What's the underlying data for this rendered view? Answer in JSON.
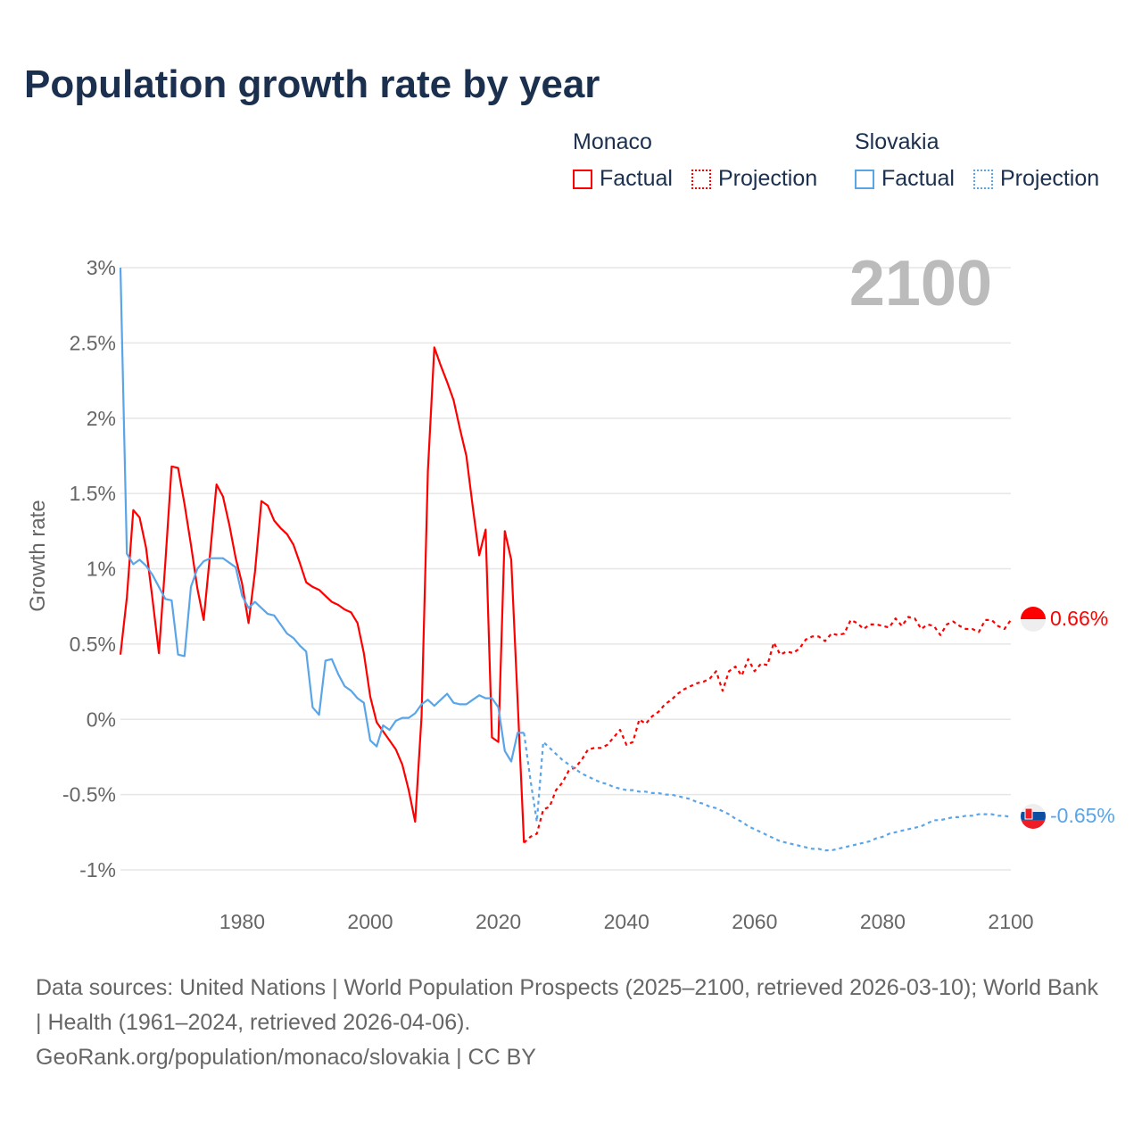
{
  "title": "Population growth rate by year",
  "legend": {
    "groups": [
      {
        "name": "Monaco",
        "factual": "Factual",
        "projection": "Projection",
        "color": "#ff0000"
      },
      {
        "name": "Slovakia",
        "factual": "Factual",
        "projection": "Projection",
        "color": "#5aa5e8"
      }
    ]
  },
  "year_watermark": "2100",
  "end_labels": {
    "monaco": "0.66%",
    "slovakia": "-0.65%"
  },
  "footer": {
    "sources": "Data sources: United Nations | World Population Prospects (2025–2100, retrieved 2026-03-10); World Bank | Health (1961–2024, retrieved 2026-04-06).",
    "credit": "GeoRank.org/population/monaco/slovakia | CC BY"
  },
  "chart_data": {
    "type": "line",
    "title": "Population growth rate by year",
    "xlabel": "",
    "ylabel": "Growth rate",
    "xlim": [
      1961,
      2100
    ],
    "ylim": [
      -1,
      3
    ],
    "x_ticks": [
      1980,
      2000,
      2020,
      2040,
      2060,
      2080,
      2100
    ],
    "x_tick_labels": [
      "1980",
      "2000",
      "2020",
      "2040",
      "2060",
      "2080",
      "2100"
    ],
    "y_ticks": [
      -1,
      -0.5,
      0,
      0.5,
      1,
      1.5,
      2,
      2.5,
      3
    ],
    "y_tick_labels": [
      "-1%",
      "-0.5%",
      "0%",
      "0.5%",
      "1%",
      "1.5%",
      "2%",
      "2.5%",
      "3%"
    ],
    "grid": true,
    "legend_position": "top-right",
    "series": [
      {
        "name": "Monaco Factual",
        "start_year": 1961,
        "style": "solid",
        "color": "#ff0000",
        "values": [
          0.43,
          0.81,
          1.39,
          1.34,
          1.14,
          0.8,
          0.44,
          1.04,
          1.68,
          1.67,
          1.43,
          1.16,
          0.87,
          0.66,
          1.1,
          1.56,
          1.48,
          1.29,
          1.07,
          0.9,
          0.64,
          0.98,
          1.45,
          1.42,
          1.32,
          1.27,
          1.23,
          1.16,
          1.04,
          0.91,
          0.88,
          0.86,
          0.82,
          0.78,
          0.76,
          0.73,
          0.71,
          0.64,
          0.44,
          0.15,
          -0.02,
          -0.08,
          -0.14,
          -0.2,
          -0.3,
          -0.47,
          -0.68,
          0.02,
          1.65,
          2.47,
          2.35,
          2.24,
          2.12,
          1.93,
          1.75,
          1.41,
          1.09,
          1.26,
          -0.12,
          -0.15,
          1.25,
          1.06,
          0.12,
          -0.82
        ]
      },
      {
        "name": "Monaco Projection",
        "start_year": 2024,
        "style": "dotted",
        "color": "#ff0000",
        "values": [
          -0.82,
          -0.78,
          -0.76,
          -0.6,
          -0.58,
          -0.47,
          -0.42,
          -0.34,
          -0.32,
          -0.27,
          -0.2,
          -0.19,
          -0.19,
          -0.17,
          -0.12,
          -0.07,
          -0.17,
          -0.15,
          0,
          -0.03,
          0.02,
          0.05,
          0.1,
          0.13,
          0.17,
          0.2,
          0.22,
          0.24,
          0.25,
          0.27,
          0.32,
          0.19,
          0.32,
          0.35,
          0.29,
          0.4,
          0.32,
          0.37,
          0.36,
          0.51,
          0.43,
          0.45,
          0.44,
          0.47,
          0.53,
          0.55,
          0.55,
          0.52,
          0.57,
          0.56,
          0.57,
          0.66,
          0.64,
          0.6,
          0.63,
          0.63,
          0.62,
          0.61,
          0.67,
          0.62,
          0.68,
          0.67,
          0.6,
          0.63,
          0.62,
          0.56,
          0.63,
          0.65,
          0.62,
          0.6,
          0.6,
          0.58,
          0.66,
          0.66,
          0.62,
          0.6,
          0.66
        ]
      },
      {
        "name": "Slovakia Factual",
        "start_year": 1961,
        "style": "solid",
        "color": "#5aa5e8",
        "values": [
          3.0,
          1.1,
          1.03,
          1.06,
          1.02,
          0.96,
          0.88,
          0.8,
          0.79,
          0.43,
          0.42,
          0.88,
          1.0,
          1.05,
          1.07,
          1.07,
          1.07,
          1.04,
          1.01,
          0.82,
          0.74,
          0.78,
          0.74,
          0.7,
          0.69,
          0.63,
          0.57,
          0.54,
          0.49,
          0.45,
          0.08,
          0.03,
          0.39,
          0.4,
          0.3,
          0.22,
          0.19,
          0.14,
          0.11,
          -0.14,
          -0.18,
          -0.04,
          -0.07,
          -0.01,
          0.01,
          0.01,
          0.04,
          0.1,
          0.13,
          0.09,
          0.13,
          0.17,
          0.11,
          0.1,
          0.1,
          0.13,
          0.16,
          0.14,
          0.14,
          0.08,
          -0.21,
          -0.28,
          -0.09,
          -0.09
        ]
      },
      {
        "name": "Slovakia Projection",
        "start_year": 2024,
        "style": "dotted",
        "color": "#5aa5e8",
        "values": [
          -0.09,
          -0.4,
          -0.68,
          -0.15,
          -0.19,
          -0.23,
          -0.27,
          -0.3,
          -0.33,
          -0.36,
          -0.38,
          -0.4,
          -0.42,
          -0.43,
          -0.45,
          -0.46,
          -0.47,
          -0.47,
          -0.48,
          -0.48,
          -0.49,
          -0.49,
          -0.5,
          -0.5,
          -0.51,
          -0.52,
          -0.53,
          -0.55,
          -0.56,
          -0.58,
          -0.59,
          -0.61,
          -0.63,
          -0.66,
          -0.68,
          -0.71,
          -0.73,
          -0.75,
          -0.77,
          -0.79,
          -0.81,
          -0.82,
          -0.83,
          -0.84,
          -0.85,
          -0.86,
          -0.86,
          -0.87,
          -0.87,
          -0.86,
          -0.85,
          -0.84,
          -0.83,
          -0.82,
          -0.81,
          -0.79,
          -0.78,
          -0.76,
          -0.75,
          -0.74,
          -0.73,
          -0.72,
          -0.71,
          -0.69,
          -0.67,
          -0.67,
          -0.66,
          -0.65,
          -0.65,
          -0.64,
          -0.64,
          -0.63,
          -0.63,
          -0.63,
          -0.64,
          -0.64,
          -0.65
        ]
      }
    ]
  }
}
